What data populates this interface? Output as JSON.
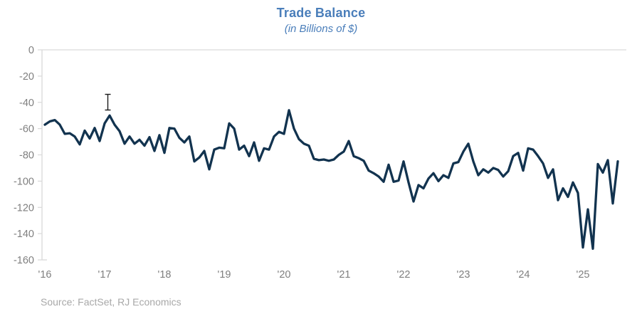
{
  "title": "Trade Balance",
  "subtitle": "(in Billions of $)",
  "source": "Source: FactSet, RJ Economics",
  "colors": {
    "title": "#4a7eba",
    "line": "#12334f",
    "axis_text": "#7f7f7f",
    "axis_line": "#d9d9d9",
    "source_text": "#a8a8a8",
    "background": "#ffffff"
  },
  "cursor": {
    "type": "i-beam-text-cursor"
  },
  "chart_data": {
    "type": "line",
    "title": "Trade Balance",
    "subtitle": "(in Billions of $)",
    "ylabel": "",
    "xlabel": "",
    "ylim": [
      -160,
      0
    ],
    "y_tick_labels": [
      "0",
      "-20",
      "-40",
      "-60",
      "-80",
      "-100",
      "-120",
      "-140",
      "-160"
    ],
    "x_tick_labels": [
      "'16",
      "'17",
      "'18",
      "'19",
      "'20",
      "'21",
      "'22",
      "'23",
      "'24",
      "'25"
    ],
    "grid": "zero-baseline and left axis only, no gridlines",
    "legend": "none",
    "frequency": "monthly",
    "x_range": "Jan 2016 - Aug 2025",
    "series": [
      {
        "name": "Trade Balance (Billions of $)",
        "values": [
          -57,
          -54.5,
          -53.5,
          -57,
          -64,
          -63.5,
          -66,
          -72,
          -61.5,
          -67.5,
          -59.5,
          -69.5,
          -56,
          -50,
          -57,
          -62,
          -71.5,
          -66,
          -71.5,
          -68.5,
          -73,
          -66.5,
          -77,
          -65,
          -78.5,
          -59.5,
          -60,
          -67,
          -70.5,
          -66,
          -85,
          -82,
          -77,
          -91,
          -76,
          -74.5,
          -75,
          -56,
          -60,
          -76,
          -73,
          -81,
          -70.5,
          -84.5,
          -75,
          -76,
          -66,
          -62.5,
          -64,
          -46,
          -60,
          -68,
          -71.5,
          -73,
          -83,
          -84,
          -83.5,
          -84.5,
          -83.5,
          -80,
          -77.5,
          -69.5,
          -81,
          -82.5,
          -84.5,
          -92,
          -94,
          -96.5,
          -100.5,
          -87.5,
          -100.5,
          -99.5,
          -85,
          -101,
          -115.5,
          -103,
          -105.5,
          -98,
          -94,
          -100,
          -95.5,
          -97.5,
          -86.5,
          -85.5,
          -77.5,
          -71.5,
          -85,
          -95.5,
          -91,
          -93.5,
          -90,
          -91.5,
          -96.5,
          -92.5,
          -81,
          -78.5,
          -92,
          -75,
          -76,
          -81,
          -86.5,
          -97.5,
          -91,
          -114.5,
          -105.5,
          -112,
          -101,
          -109,
          -150.5,
          -121.5,
          -151.5,
          -87,
          -93.5,
          -84,
          -117,
          -85
        ]
      }
    ]
  }
}
